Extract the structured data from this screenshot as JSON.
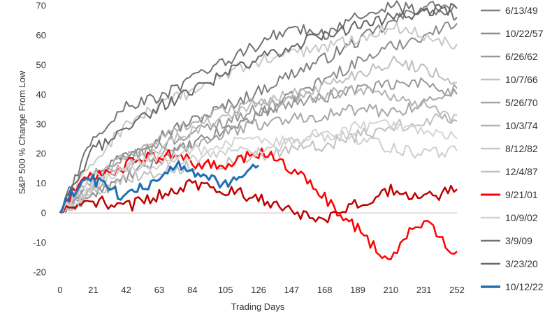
{
  "chart_data": {
    "type": "line",
    "title": "",
    "xlabel": "Trading Days",
    "ylabel": "S&P 500 % Change From Low",
    "xlim": [
      0,
      252
    ],
    "ylim": [
      -20,
      70
    ],
    "x_ticks": [
      "0",
      "21",
      "42",
      "63",
      "84",
      "105",
      "126",
      "147",
      "168",
      "189",
      "210",
      "231",
      "252"
    ],
    "y_ticks": [
      "-20",
      "-10",
      "0",
      "10",
      "20",
      "30",
      "40",
      "50",
      "60",
      "70"
    ],
    "grid": false,
    "legend_position": "right",
    "series": [
      {
        "name": "6/13/49",
        "color": "#7f7f7f",
        "width": 2,
        "x": [
          0,
          21,
          42,
          63,
          84,
          105,
          126,
          147,
          168,
          189,
          210,
          231,
          252
        ],
        "y": [
          0,
          13,
          20,
          26,
          31,
          36,
          41,
          47,
          52,
          58,
          64,
          70,
          69
        ]
      },
      {
        "name": "10/22/57",
        "color": "#8c8c8c",
        "width": 2,
        "x": [
          0,
          21,
          42,
          63,
          84,
          105,
          126,
          147,
          168,
          189,
          210,
          231,
          252
        ],
        "y": [
          0,
          6,
          12,
          18,
          23,
          28,
          33,
          39,
          45,
          51,
          56,
          60,
          64
        ]
      },
      {
        "name": "6/26/62",
        "color": "#999999",
        "width": 2,
        "x": [
          0,
          21,
          42,
          63,
          84,
          105,
          126,
          147,
          168,
          189,
          210,
          231,
          252
        ],
        "y": [
          0,
          10,
          18,
          23,
          27,
          31,
          35,
          37,
          39,
          42,
          43,
          44,
          40
        ]
      },
      {
        "name": "10/7/66",
        "color": "#bfbfbf",
        "width": 2,
        "x": [
          0,
          21,
          42,
          63,
          84,
          105,
          126,
          147,
          168,
          189,
          210,
          231,
          252
        ],
        "y": [
          0,
          8,
          16,
          22,
          28,
          33,
          37,
          40,
          43,
          47,
          51,
          49,
          44
        ]
      },
      {
        "name": "5/26/70",
        "color": "#a6a6a6",
        "width": 2,
        "x": [
          0,
          21,
          42,
          63,
          84,
          105,
          126,
          147,
          168,
          189,
          210,
          231,
          252
        ],
        "y": [
          0,
          9,
          15,
          19,
          23,
          27,
          30,
          32,
          33,
          35,
          34,
          37,
          42
        ]
      },
      {
        "name": "10/3/74",
        "color": "#b2b2b2",
        "width": 2,
        "x": [
          0,
          21,
          42,
          63,
          84,
          105,
          126,
          147,
          168,
          189,
          210,
          231,
          252
        ],
        "y": [
          0,
          12,
          19,
          25,
          31,
          35,
          37,
          38,
          40,
          42,
          40,
          36,
          31
        ]
      },
      {
        "name": "8/12/82",
        "color": "#c8c8c8",
        "width": 2,
        "x": [
          0,
          21,
          42,
          63,
          84,
          105,
          126,
          147,
          168,
          189,
          210,
          231,
          252
        ],
        "y": [
          0,
          17,
          30,
          36,
          41,
          47,
          51,
          54,
          56,
          59,
          63,
          60,
          57
        ]
      },
      {
        "name": "12/4/87",
        "color": "#c0c0c0",
        "width": 2,
        "x": [
          0,
          21,
          42,
          63,
          84,
          105,
          126,
          147,
          168,
          189,
          210,
          231,
          252
        ],
        "y": [
          0,
          7,
          12,
          14,
          16,
          17,
          19,
          21,
          23,
          26,
          29,
          31,
          33
        ]
      },
      {
        "name": "9/21/01",
        "color": "#ff0000",
        "width": 2.5,
        "x": [
          0,
          10,
          21,
          31,
          42,
          52,
          63,
          73,
          84,
          94,
          105,
          115,
          126,
          136,
          147,
          157,
          168,
          178,
          189,
          199,
          210,
          220,
          231,
          241,
          252
        ],
        "y": [
          0,
          9,
          12,
          14,
          16,
          19,
          18,
          20,
          17,
          16,
          15,
          18,
          20,
          19,
          15,
          10,
          5,
          0,
          -5,
          -11,
          -17,
          -8,
          -2,
          -9,
          -13
        ]
      },
      {
        "name": "10/9/02",
        "color": "#d4d4d4",
        "width": 2,
        "x": [
          0,
          21,
          42,
          63,
          84,
          105,
          126,
          147,
          168,
          189,
          210,
          231,
          252
        ],
        "y": [
          0,
          12,
          16,
          19,
          21,
          23,
          25,
          24,
          27,
          29,
          30,
          27,
          25
        ]
      },
      {
        "name": "3/9/09",
        "color": "#737373",
        "width": 2,
        "x": [
          0,
          21,
          42,
          63,
          84,
          105,
          126,
          147,
          168,
          189,
          210,
          231,
          252
        ],
        "y": [
          0,
          26,
          36,
          39,
          45,
          51,
          57,
          63,
          60,
          66,
          70,
          68,
          66
        ]
      },
      {
        "name": "3/23/20",
        "color": "#666666",
        "width": 2,
        "x": [
          0,
          21,
          42,
          63,
          84,
          105,
          126,
          147,
          168,
          189,
          210,
          231,
          252
        ],
        "y": [
          0,
          21,
          29,
          36,
          41,
          47,
          52,
          56,
          60,
          63,
          66,
          68,
          69
        ]
      },
      {
        "name": "",
        "color": "#c00000",
        "width": 2.5,
        "x": [
          0,
          21,
          42,
          63,
          84,
          105,
          126,
          147,
          168,
          189,
          210,
          231,
          252
        ],
        "y": [
          0,
          4,
          2,
          6,
          10,
          8,
          5,
          0,
          -2,
          3,
          8,
          5,
          8
        ]
      },
      {
        "name": "",
        "color": "#cfcfcf",
        "width": 2,
        "x": [
          0,
          21,
          42,
          63,
          84,
          105,
          126,
          147,
          168,
          189,
          210,
          231,
          252
        ],
        "y": [
          0,
          9,
          14,
          17,
          18,
          20,
          21,
          24,
          26,
          25,
          22,
          20,
          21
        ]
      },
      {
        "name": "10/12/22",
        "color": "#1f6fb4",
        "width": 3,
        "x": [
          0,
          7,
          14,
          21,
          28,
          35,
          42,
          49,
          56,
          63,
          70,
          77,
          84,
          91,
          98,
          105,
          112,
          119,
          126
        ],
        "y": [
          0,
          6,
          10,
          11,
          9,
          7,
          6,
          8,
          10,
          12,
          14,
          16,
          14,
          13,
          11,
          9,
          12,
          14,
          16
        ]
      }
    ]
  }
}
